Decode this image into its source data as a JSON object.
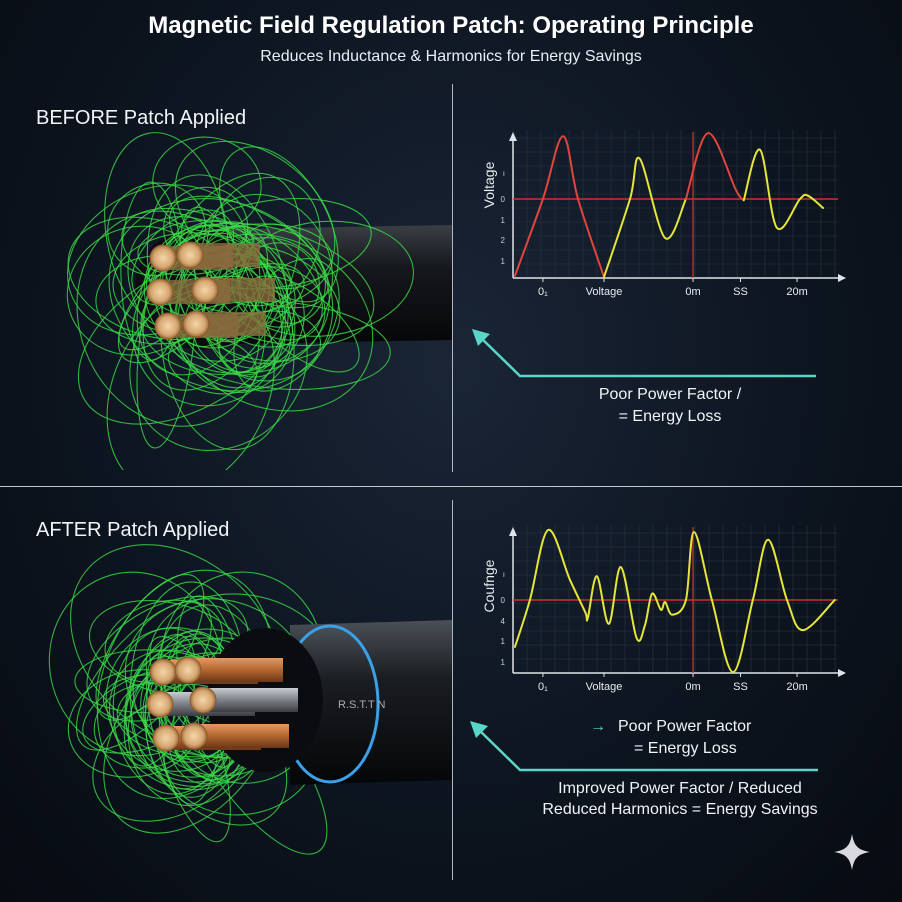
{
  "header": {
    "title": "Magnetic Field Regulation Patch: Operating Principle",
    "subtitle": "Reduces Inductance & Harmonics for Energy Savings"
  },
  "before": {
    "label": "BEFORE Patch Applied",
    "caption_line1": "Poor Power Factor /",
    "caption_line2": "= Energy Loss"
  },
  "after": {
    "label": "AFTER Patch Applied",
    "cable_marking": "R.S.T.T   N",
    "caption_small_line1": "Poor Power Factor",
    "caption_small_line2": "= Energy Loss",
    "caption_line1": "Improved Power Factor / Reduced",
    "caption_line2": "Reduced Harmonics = Energy Savings"
  },
  "colors": {
    "field_lines": "#3ddc4a",
    "red_wave": "#e0463c",
    "yellow_wave": "#e6e63a",
    "teal_arrow": "#5ad6c8",
    "copper": "#c9773e"
  },
  "chart_data": [
    {
      "type": "line",
      "ylabel": "Voltage",
      "ytick_labels": [
        "ı",
        "0",
        "1",
        "2",
        "1"
      ],
      "xtick_labels": [
        "0₁",
        "Voltage",
        "0m",
        "SS",
        "20m"
      ],
      "grid": true,
      "series": [
        {
          "color": "#e0463c",
          "points": [
            [
              0.6,
              -1.2
            ],
            [
              9.2,
              0
            ],
            [
              15.4,
              0.98
            ],
            [
              20,
              0
            ],
            [
              28,
              -1.22
            ]
          ]
        },
        {
          "color": "#e6e63a",
          "points": [
            [
              28,
              -1.22
            ],
            [
              36,
              0
            ],
            [
              39,
              0.63
            ],
            [
              46.8,
              -0.61
            ],
            [
              53.2,
              0
            ]
          ]
        },
        {
          "color": "#e0463c",
          "points": [
            [
              53.2,
              0
            ],
            [
              60,
              1.03
            ],
            [
              68.6,
              0.14
            ],
            [
              71,
              -0.02
            ]
          ]
        },
        {
          "color": "#e6e63a",
          "points": [
            [
              71,
              -0.02
            ],
            [
              76,
              0.77
            ],
            [
              81.2,
              -0.45
            ],
            [
              88.3,
              0
            ],
            [
              90.8,
              0.05
            ],
            [
              95.4,
              -0.14
            ]
          ]
        }
      ]
    },
    {
      "type": "line",
      "ylabel": "Coufnge",
      "ytick_labels": [
        "ı",
        "0",
        "4",
        "1",
        "1"
      ],
      "xtick_labels": [
        "0₁",
        "Voltage",
        "0m",
        "SS",
        "20m"
      ],
      "grid": true,
      "series": [
        {
          "color": "#e6e63a",
          "points": [
            [
              0.6,
              -0.67
            ],
            [
              5.2,
              0
            ],
            [
              10.8,
              1
            ],
            [
              17.5,
              0.29
            ],
            [
              22.2,
              -0.17
            ],
            [
              23,
              -0.26
            ],
            [
              25.8,
              0.34
            ],
            [
              29.5,
              -0.34
            ],
            [
              33.2,
              0.47
            ],
            [
              38,
              -0.54
            ],
            [
              40.6,
              -0.36
            ],
            [
              42.8,
              0.09
            ],
            [
              45.5,
              -0.14
            ],
            [
              46.8,
              -0.03
            ],
            [
              49,
              -0.21
            ],
            [
              53.2,
              0
            ],
            [
              55.7,
              0.97
            ],
            [
              61.2,
              0
            ],
            [
              67.7,
              -1.03
            ],
            [
              73.8,
              0
            ],
            [
              78.5,
              0.86
            ],
            [
              84.3,
              0
            ],
            [
              89.2,
              -0.43
            ],
            [
              99,
              0
            ]
          ]
        }
      ]
    }
  ]
}
